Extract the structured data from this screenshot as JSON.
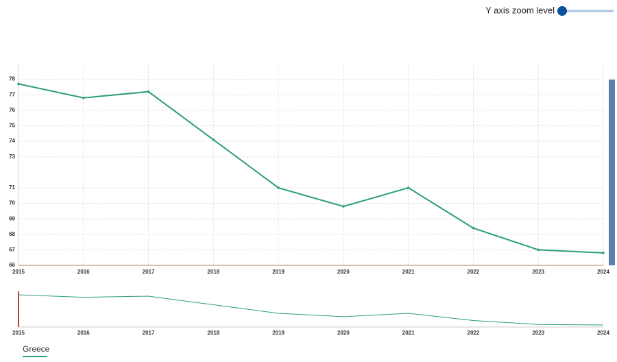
{
  "controls": {
    "y_zoom_label": "Y axis zoom level"
  },
  "chart_data": {
    "type": "line",
    "categories": [
      "2015",
      "2016",
      "2017",
      "2018",
      "2019",
      "2020",
      "2021",
      "2022",
      "2023",
      "2024"
    ],
    "series": [
      {
        "name": "Greece",
        "color": "#2a9d7c",
        "values": [
          77.7,
          76.8,
          77.2,
          74.1,
          71.0,
          69.8,
          71.0,
          68.4,
          67.0,
          66.8
        ]
      }
    ],
    "ylim": [
      66,
      79
    ],
    "yticks": [
      66,
      67,
      68,
      69,
      70,
      71,
      73,
      74,
      75,
      76,
      77,
      78
    ],
    "grid": true
  }
}
